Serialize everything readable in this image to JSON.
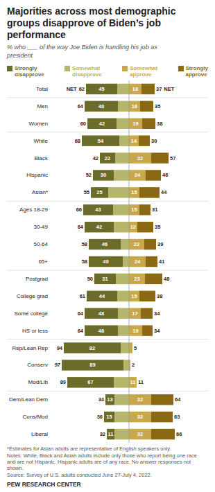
{
  "chart_data": {
    "type": "bar",
    "orientation": "horizontal",
    "stacked": true,
    "title": "Majorities across most demographic\ngroups disapprove of Biden’s job\nperformance",
    "subtitle": "% who ___ of the way Joe Biden is handling his job as\npresident",
    "categories": [
      "Total",
      "Men",
      "Women",
      "White",
      "Black",
      "Hispanic",
      "Asian*",
      "Ages 18-29",
      "30-49",
      "50-64",
      "65+",
      "Postgrad",
      "College grad",
      "Some college",
      "HS or less",
      "Rep/Lean Rep",
      "Conserv",
      "Mod/Lib",
      "Dem/Lean Dem",
      "Cons/Mod",
      "Liberal"
    ],
    "series": [
      {
        "name": "Strongly\ndisapprove",
        "color": "#6b6b2a",
        "data_labels": true,
        "values": [
          45,
          48,
          42,
          54,
          22,
          30,
          25,
          43,
          42,
          46,
          49,
          31,
          44,
          48,
          48,
          82,
          89,
          67,
          13,
          15,
          11
        ]
      },
      {
        "name": "Somewhat\ndisapprove",
        "color": "#b5b56b",
        "values": [
          17,
          16,
          18,
          14,
          20,
          22,
          30,
          23,
          22,
          12,
          9,
          19,
          17,
          16,
          16,
          12,
          8,
          22,
          21,
          21,
          21
        ]
      },
      {
        "name": "Somewhat\napprove",
        "color": "#c8a84b",
        "data_labels": true,
        "values": [
          18,
          16,
          19,
          14,
          32,
          24,
          15,
          15,
          12,
          22,
          24,
          23,
          15,
          17,
          19,
          5,
          2,
          11,
          32,
          32,
          32
        ],
        "value_labels": [
          "18",
          "16",
          "19",
          "14",
          "32",
          "24",
          "15",
          "15",
          "12",
          "22",
          "24",
          "23",
          "15",
          "17",
          "19",
          null,
          null,
          "11",
          "32",
          "32",
          "32"
        ]
      },
      {
        "name": "Strongly\napprove",
        "color": "#8b6914",
        "values": [
          19,
          19,
          19,
          16,
          25,
          22,
          29,
          16,
          23,
          17,
          17,
          25,
          23,
          17,
          15,
          0,
          0,
          0,
          32,
          31,
          34
        ]
      }
    ],
    "net_disapprove": [
      62,
      64,
      60,
      68,
      42,
      52,
      55,
      66,
      64,
      58,
      58,
      50,
      61,
      64,
      64,
      94,
      97,
      89,
      34,
      36,
      32
    ],
    "net_approve": [
      37,
      35,
      38,
      30,
      57,
      46,
      44,
      31,
      35,
      39,
      41,
      48,
      38,
      34,
      34,
      5,
      2,
      11,
      64,
      63,
      66
    ],
    "net_label": "NET",
    "group_breaks_after": [
      0,
      2,
      6,
      10,
      14,
      17
    ],
    "xlim": [
      -112,
      112
    ],
    "tick_labels": false,
    "legend": "top",
    "footnote": "*Estimates for Asian adults are representative of English speakers only.\nNotes: White, Black and Asian adults include only those who report being one race\nand are not Hispanic. Hispanic adults are of any race. No answer responses not shown.\nSource: Survey of U.S. adults conducted June 27-July 4, 2022.",
    "source": "PEW RESEARCH CENTER"
  }
}
